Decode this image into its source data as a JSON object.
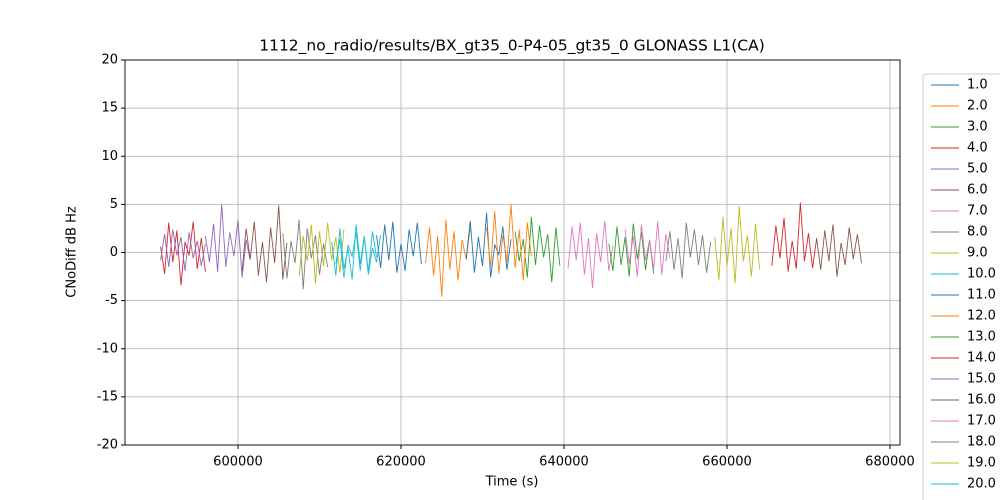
{
  "chart_data": {
    "type": "line",
    "title": "1112_no_radio/results/BX_gt35_0-P4-05_gt35_0 GLONASS L1(CA)",
    "x_label": "Time (s)",
    "y_label": "CNoDiff dB Hz",
    "xlim": [
      586135,
      681227
    ],
    "ylim": [
      -20,
      20
    ],
    "xticks": [
      600000,
      620000,
      640000,
      660000,
      680000
    ],
    "yticks": [
      -20,
      -15,
      -10,
      -5,
      0,
      5,
      10,
      15,
      20
    ],
    "grid": true,
    "legend_position": "right",
    "series": [
      {
        "name": "1.0",
        "color": "#1f77b4",
        "x": [
          617000,
          617500,
          618000,
          618500,
          619000,
          619500,
          620000,
          620500,
          621000,
          621500,
          622000,
          622500
        ],
        "values": [
          1.8,
          -1.6,
          2.9,
          -0.8,
          3.2,
          -2.1,
          0.9,
          -1.9,
          2.4,
          -0.4,
          3.1,
          -1.2
        ]
      },
      {
        "name": "2.0",
        "color": "#ff7f0e",
        "x": [
          623000,
          623500,
          624000,
          624500,
          625000,
          625500,
          626000,
          626500,
          627000,
          627500,
          628000,
          628500
        ],
        "values": [
          -1.1,
          2.6,
          -2.4,
          1.7,
          -4.6,
          3.4,
          -1.8,
          2.2,
          -2.9,
          1.3,
          -0.7,
          2.5
        ]
      },
      {
        "name": "3.0",
        "color": "#2ca02c",
        "x": [
          634000,
          634500,
          635000,
          635500,
          636000,
          636500,
          637000,
          637500,
          638000,
          638500,
          639000,
          639500
        ],
        "values": [
          2.2,
          -0.9,
          1.4,
          -2.6,
          3.7,
          -1.3,
          2.8,
          -0.5,
          1.9,
          -3.1,
          2.6,
          -1.4
        ]
      },
      {
        "name": "4.0",
        "color": "#d62728",
        "x": [
          590500,
          591000,
          591500,
          592000,
          592500,
          593000,
          593500,
          594000,
          594500,
          595000,
          595500,
          596000
        ],
        "values": [
          0.6,
          -2.2,
          3.1,
          -1.0,
          2.3,
          -3.4,
          1.1,
          -0.3,
          3.2,
          -1.7,
          1.5,
          -2.0
        ]
      },
      {
        "name": "5.0",
        "color": "#9467bd",
        "x": [
          590500,
          591000,
          591500,
          592000,
          592500,
          593000,
          593500,
          594000,
          594500,
          595000,
          595500,
          596000
        ],
        "values": [
          -0.8,
          1.9,
          -1.5,
          2.4,
          -0.3,
          1.6,
          -1.9,
          2.1,
          -0.6,
          1.2,
          -1.4,
          0.9
        ]
      },
      {
        "name": "6.0",
        "color": "#8c564b",
        "x": [
          671000,
          671500,
          672000,
          672500,
          673000,
          673500,
          674000,
          674500,
          675000,
          675500,
          676000,
          676500
        ],
        "values": [
          1.4,
          -1.8,
          2.3,
          -0.9,
          2.9,
          -2.5,
          1.0,
          -1.3,
          2.6,
          -0.7,
          1.9,
          -1.1
        ]
      },
      {
        "name": "7.0",
        "color": "#e377c2",
        "x": [
          640500,
          641000,
          641500,
          642000,
          642500,
          643000,
          643500,
          644000,
          644500,
          645000,
          645500,
          646000
        ],
        "values": [
          -1.6,
          2.7,
          -0.8,
          3.1,
          -2.3,
          1.5,
          -3.7,
          2.0,
          -1.0,
          3.3,
          -1.9,
          0.7
        ]
      },
      {
        "name": "8.0",
        "color": "#7f7f7f",
        "x": [
          605500,
          606000,
          606500,
          607000,
          607500,
          608000,
          608500,
          609000,
          609500,
          610000,
          610500,
          611000
        ],
        "values": [
          2.0,
          -2.7,
          1.2,
          -1.1,
          3.4,
          -3.8,
          2.5,
          -0.6,
          1.8,
          -2.3,
          0.9,
          -1.5
        ]
      },
      {
        "name": "9.0",
        "color": "#bcbd22",
        "x": [
          607500,
          608000,
          608500,
          609000,
          609500,
          610000,
          610500,
          611000,
          611500,
          612000,
          612500,
          613000
        ],
        "values": [
          -2.5,
          1.7,
          -0.9,
          2.9,
          -3.2,
          2.2,
          -1.4,
          3.1,
          -0.8,
          1.6,
          -2.1,
          2.4
        ]
      },
      {
        "name": "10.0",
        "color": "#17becf",
        "x": [
          611500,
          612000,
          612500,
          613000,
          613500,
          614000,
          614500,
          615000,
          615500,
          616000,
          616500,
          617000
        ],
        "values": [
          1.1,
          -2.4,
          2.5,
          -1.7,
          0.4,
          -2.8,
          2.9,
          -1.2,
          1.7,
          -2.0,
          2.2,
          -0.5
        ]
      },
      {
        "name": "11.0",
        "color": "#1f77b4",
        "x": [
          628000,
          628500,
          629000,
          629500,
          630000,
          630500,
          631000,
          631500,
          632000,
          632500,
          633000,
          633500
        ],
        "values": [
          -0.7,
          3.3,
          -2.1,
          1.6,
          -1.4,
          4.1,
          -2.6,
          0.8,
          -0.2,
          2.7,
          -1.8,
          1.4
        ]
      },
      {
        "name": "12.0",
        "color": "#ff7f0e",
        "x": [
          630500,
          631000,
          631500,
          632000,
          632500,
          633000,
          633500,
          634000,
          634500,
          635000,
          635500,
          636000
        ],
        "values": [
          2.6,
          -1.5,
          4.3,
          -2.2,
          1.8,
          -0.9,
          5.0,
          -1.6,
          2.4,
          -2.9,
          3.1,
          -0.4
        ]
      },
      {
        "name": "13.0",
        "color": "#2ca02c",
        "x": [
          645500,
          646000,
          646500,
          647000,
          647500,
          648000,
          648500,
          649000,
          649500,
          650000,
          650500,
          651000
        ],
        "values": [
          0.9,
          -1.9,
          2.7,
          -1.3,
          1.6,
          -2.5,
          3.0,
          -0.7,
          2.1,
          -1.8,
          1.3,
          -2.2
        ]
      },
      {
        "name": "14.0",
        "color": "#d62728",
        "x": [
          665500,
          666000,
          666500,
          667000,
          667500,
          668000,
          668500,
          669000,
          669500,
          670000,
          670500,
          671000
        ],
        "values": [
          -1.4,
          2.8,
          -0.6,
          3.6,
          -2.0,
          1.2,
          -1.7,
          5.2,
          -0.9,
          2.0,
          -1.6,
          1.5
        ]
      },
      {
        "name": "15.0",
        "color": "#9467bd",
        "x": [
          596000,
          596500,
          597000,
          597500,
          598000,
          598500,
          599000,
          599500,
          600000,
          600500,
          601000,
          601500
        ],
        "values": [
          1.7,
          -1.0,
          3.0,
          -2.0,
          5.0,
          -1.5,
          2.1,
          -0.4,
          3.4,
          -2.6,
          1.3,
          -0.8
        ]
      },
      {
        "name": "16.0",
        "color": "#8c564b",
        "x": [
          600500,
          601000,
          601500,
          602000,
          602500,
          603000,
          603500,
          604000,
          604500,
          605000,
          605500,
          606000
        ],
        "values": [
          -1.9,
          2.5,
          -0.7,
          3.2,
          -2.4,
          1.1,
          -3.1,
          2.6,
          -1.1,
          4.9,
          -2.8,
          1.0
        ]
      },
      {
        "name": "17.0",
        "color": "#e377c2",
        "x": [
          647500,
          648000,
          648500,
          649000,
          649500,
          650000,
          650500,
          651000,
          651500,
          652000,
          652500,
          653000
        ],
        "values": [
          2.4,
          -1.2,
          1.7,
          -2.5,
          2.9,
          -0.8,
          1.3,
          -1.7,
          3.2,
          -2.3,
          1.9,
          -0.6
        ]
      },
      {
        "name": "18.0",
        "color": "#7f7f7f",
        "x": [
          652500,
          653000,
          653500,
          654000,
          654500,
          655000,
          655500,
          656000,
          656500,
          657000,
          657500,
          658000
        ],
        "values": [
          -0.9,
          2.2,
          -1.8,
          1.5,
          -2.7,
          3.1,
          -0.5,
          2.4,
          -1.3,
          1.8,
          -2.1,
          1.1
        ]
      },
      {
        "name": "19.0",
        "color": "#bcbd22",
        "x": [
          658500,
          659000,
          659500,
          660000,
          660500,
          661000,
          661500,
          662000,
          662500,
          663000,
          663500,
          664000
        ],
        "values": [
          1.6,
          -2.9,
          3.7,
          -1.4,
          2.5,
          -3.2,
          4.8,
          -0.9,
          1.8,
          -2.5,
          3.0,
          -1.7
        ]
      },
      {
        "name": "20.0",
        "color": "#17becf",
        "x": [
          612000,
          612500,
          613000,
          613500,
          614000,
          614500,
          615000,
          615500,
          616000,
          616500,
          617000,
          617500
        ],
        "values": [
          -1.2,
          1.4,
          -2.6,
          0.8,
          -0.4,
          2.1,
          -1.9,
          1.6,
          -2.3,
          0.5,
          -1.0,
          1.8
        ]
      }
    ]
  }
}
